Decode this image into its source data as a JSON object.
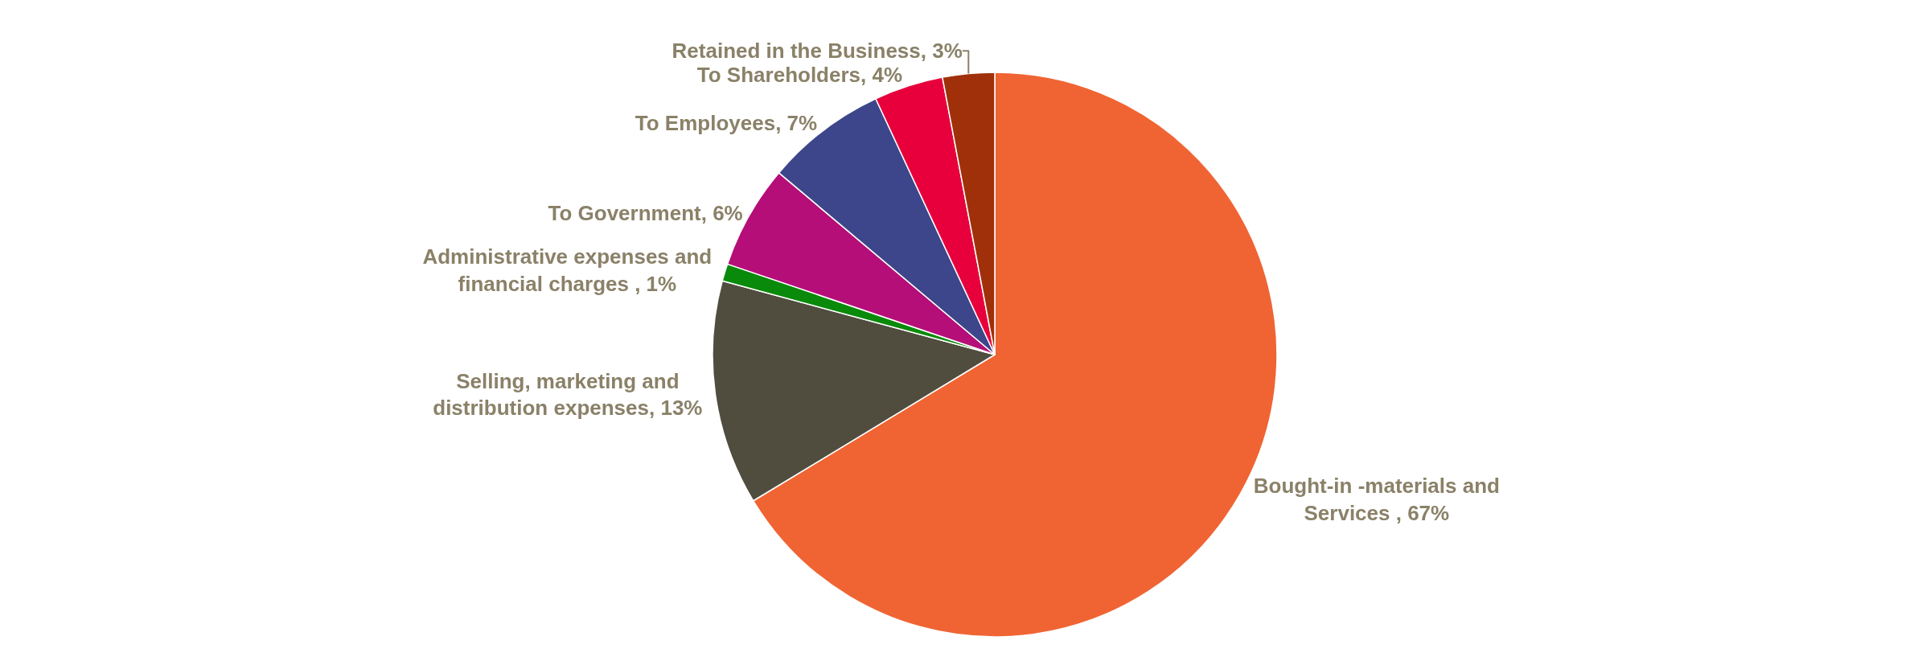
{
  "chart_data": {
    "type": "pie",
    "categories": [
      "Bought-in -materials and Services ",
      "Selling, marketing and distribution expenses",
      "Administrative expenses and financial charges ",
      "To Government",
      "To Employees",
      "To Shareholders",
      "Retained in the Business"
    ],
    "values": [
      67,
      13,
      1,
      6,
      7,
      4,
      3
    ],
    "value_labels": [
      "67%",
      "13%",
      "1%",
      "6%",
      "7%",
      "4%",
      "3%"
    ],
    "colors": [
      "#f06433",
      "#504d3f",
      "#0a8a0a",
      "#b50e78",
      "#3d468a",
      "#e8003c",
      "#a0300a"
    ],
    "legend": false
  }
}
